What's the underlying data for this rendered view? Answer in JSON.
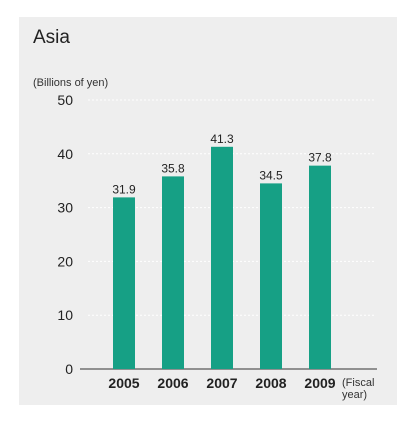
{
  "title": "Asia",
  "unit_label": "(Billions of yen)",
  "x_unit_label": "(Fiscal year)",
  "chart_data": {
    "type": "bar",
    "title": "Asia",
    "ylabel": "(Billions of yen)",
    "xlabel": "(Fiscal year)",
    "categories": [
      "2005",
      "2006",
      "2007",
      "2008",
      "2009"
    ],
    "values": [
      31.9,
      35.8,
      41.3,
      34.5,
      37.8
    ],
    "value_labels": [
      "31.9",
      "35.8",
      "41.3",
      "34.5",
      "37.8"
    ],
    "ylim": [
      0,
      50
    ],
    "yticks": [
      "0",
      "10",
      "20",
      "30",
      "40",
      "50"
    ],
    "grid": "dotted horizontal",
    "bar_color": "#16a085"
  }
}
